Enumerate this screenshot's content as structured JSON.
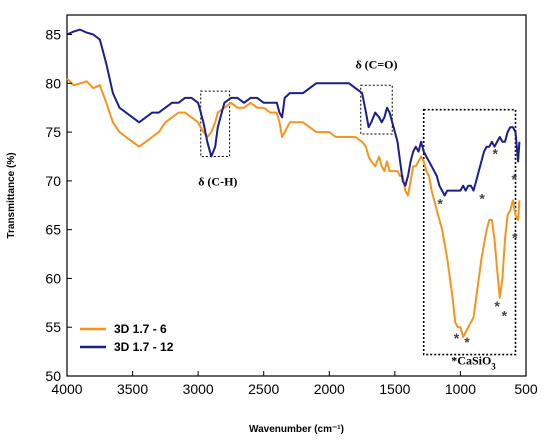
{
  "chart_data": {
    "type": "line",
    "title": "",
    "xlabel": "Wavenumber (cm⁻¹)",
    "ylabel": "Transmittance (%)",
    "xlim": [
      4000,
      500
    ],
    "ylim": [
      50,
      87
    ],
    "x_reversed": true,
    "x_ticks": [
      4000,
      3500,
      3000,
      2500,
      2000,
      1500,
      1000,
      500
    ],
    "x_tick_labels": [
      "4000",
      "3500",
      "3000",
      "2500",
      "2000",
      "1500",
      "1000",
      "500"
    ],
    "y_ticks": [
      50,
      55,
      60,
      65,
      70,
      75,
      80,
      85
    ],
    "y_tick_labels": [
      "50",
      "55",
      "60",
      "65",
      "70",
      "75",
      "80",
      "85"
    ],
    "grid": false,
    "legend_position": "bottom-left",
    "series": [
      {
        "name": "3D 1.7 - 6",
        "color": "#f7941d",
        "x": [
          4000,
          3950,
          3900,
          3850,
          3800,
          3750,
          3700,
          3650,
          3600,
          3550,
          3500,
          3450,
          3400,
          3350,
          3300,
          3250,
          3200,
          3150,
          3100,
          3050,
          3000,
          2960,
          2930,
          2900,
          2870,
          2850,
          2800,
          2750,
          2700,
          2650,
          2600,
          2550,
          2500,
          2450,
          2400,
          2380,
          2360,
          2340,
          2300,
          2250,
          2200,
          2150,
          2100,
          2050,
          2000,
          1950,
          1900,
          1850,
          1800,
          1750,
          1720,
          1700,
          1680,
          1650,
          1620,
          1600,
          1580,
          1560,
          1540,
          1520,
          1500,
          1480,
          1460,
          1440,
          1420,
          1400,
          1380,
          1360,
          1340,
          1320,
          1300,
          1280,
          1260,
          1240,
          1220,
          1200,
          1180,
          1160,
          1140,
          1120,
          1100,
          1080,
          1060,
          1040,
          1020,
          1000,
          980,
          960,
          940,
          920,
          900,
          880,
          860,
          840,
          820,
          800,
          780,
          760,
          740,
          720,
          700,
          680,
          660,
          640,
          620,
          600,
          580,
          560,
          550
        ],
        "y": [
          80.5,
          79.8,
          80.0,
          80.2,
          79.5,
          79.8,
          78.0,
          76.0,
          75.0,
          74.5,
          74.0,
          73.5,
          74.0,
          74.5,
          75.0,
          76.0,
          76.5,
          77.0,
          77.0,
          76.5,
          76.0,
          75.0,
          74.5,
          75.0,
          76.0,
          77.0,
          77.5,
          78.0,
          77.5,
          77.5,
          78.0,
          77.5,
          77.5,
          77.0,
          77.0,
          76.0,
          74.5,
          75.0,
          76.0,
          76.0,
          76.0,
          75.5,
          75.0,
          75.0,
          75.0,
          74.5,
          74.5,
          74.5,
          74.5,
          74.0,
          73.5,
          72.5,
          72.0,
          71.5,
          72.5,
          71.5,
          71.0,
          72.0,
          71.0,
          71.0,
          71.0,
          71.0,
          70.5,
          70.5,
          69.0,
          68.5,
          70.0,
          71.5,
          71.5,
          72.0,
          72.5,
          72.0,
          71.0,
          70.5,
          69.0,
          68.0,
          67.0,
          66.0,
          65.0,
          63.5,
          62.0,
          60.0,
          58.0,
          55.5,
          55.0,
          55.0,
          54.0,
          54.5,
          55.0,
          55.5,
          56.0,
          58.0,
          60.0,
          62.0,
          63.5,
          65.0,
          66.0,
          66.0,
          64.0,
          61.0,
          58.0,
          60.0,
          64.0,
          66.5,
          67.0,
          68.0,
          66.5,
          66.0,
          68.0
        ]
      },
      {
        "name": "3D 1.7 - 12",
        "color": "#1a1f8c",
        "x": [
          4000,
          3950,
          3900,
          3850,
          3800,
          3750,
          3700,
          3650,
          3600,
          3550,
          3500,
          3450,
          3400,
          3350,
          3300,
          3250,
          3200,
          3150,
          3100,
          3050,
          3000,
          2960,
          2930,
          2900,
          2870,
          2850,
          2800,
          2750,
          2700,
          2650,
          2600,
          2550,
          2500,
          2450,
          2400,
          2380,
          2360,
          2340,
          2300,
          2250,
          2200,
          2150,
          2100,
          2050,
          2000,
          1950,
          1900,
          1850,
          1800,
          1750,
          1720,
          1700,
          1680,
          1650,
          1620,
          1600,
          1580,
          1560,
          1540,
          1520,
          1500,
          1480,
          1460,
          1440,
          1420,
          1400,
          1380,
          1360,
          1340,
          1320,
          1300,
          1280,
          1260,
          1240,
          1220,
          1200,
          1180,
          1160,
          1140,
          1120,
          1100,
          1080,
          1060,
          1040,
          1020,
          1000,
          980,
          960,
          940,
          920,
          900,
          880,
          860,
          840,
          820,
          800,
          780,
          760,
          740,
          720,
          700,
          680,
          660,
          640,
          620,
          600,
          580,
          560,
          550
        ],
        "y": [
          85.0,
          85.3,
          85.5,
          85.2,
          85.0,
          84.5,
          82.0,
          79.0,
          77.5,
          77.0,
          76.5,
          76.0,
          76.5,
          77.0,
          77.0,
          77.5,
          78.0,
          78.0,
          78.5,
          78.5,
          78.0,
          76.0,
          74.0,
          72.5,
          73.5,
          75.5,
          78.0,
          78.5,
          78.5,
          78.0,
          78.5,
          78.5,
          78.0,
          78.0,
          78.0,
          77.0,
          76.5,
          78.5,
          79.0,
          79.0,
          79.0,
          79.5,
          80.0,
          80.0,
          80.0,
          80.0,
          80.0,
          80.0,
          79.5,
          79.0,
          77.0,
          75.5,
          76.0,
          77.0,
          76.5,
          76.0,
          76.5,
          77.5,
          77.0,
          76.0,
          75.0,
          74.0,
          72.0,
          70.0,
          69.5,
          70.5,
          72.0,
          73.0,
          73.5,
          73.0,
          74.0,
          73.0,
          72.5,
          72.0,
          71.5,
          71.0,
          70.5,
          69.5,
          69.0,
          68.5,
          69.0,
          69.0,
          69.0,
          69.0,
          69.0,
          69.0,
          69.5,
          69.0,
          69.5,
          69.5,
          69.0,
          70.0,
          71.0,
          72.0,
          73.0,
          73.5,
          73.5,
          74.0,
          73.5,
          74.0,
          74.5,
          74.0,
          74.0,
          75.0,
          75.5,
          75.5,
          75.0,
          72.0,
          74.0
        ]
      }
    ],
    "annotations": [
      {
        "text": "δ (C-H)",
        "x": 2850,
        "y": 69.5
      },
      {
        "text": "δ (C=O)",
        "x": 1640,
        "y": 81.5
      },
      {
        "text": "*CaSiO",
        "sub": "3",
        "x": 900,
        "y": 51.2
      }
    ],
    "highlight_boxes": [
      {
        "x_range": [
          2980,
          2760
        ],
        "y_range": [
          72.5,
          79.2
        ]
      },
      {
        "x_range": [
          1760,
          1520
        ],
        "y_range": [
          74.8,
          79.8
        ]
      },
      {
        "x_range": [
          1280,
          580
        ],
        "y_range": [
          52.2,
          77.3
        ]
      }
    ],
    "star_markers": [
      {
        "x": 1155,
        "y": 67.7
      },
      {
        "x": 835,
        "y": 68.2
      },
      {
        "x": 735,
        "y": 72.8
      },
      {
        "x": 590,
        "y": 70.2
      },
      {
        "x": 1030,
        "y": 53.9
      },
      {
        "x": 950,
        "y": 53.5
      },
      {
        "x": 720,
        "y": 57.2
      },
      {
        "x": 665,
        "y": 56.2
      },
      {
        "x": 585,
        "y": 64.2
      }
    ]
  }
}
